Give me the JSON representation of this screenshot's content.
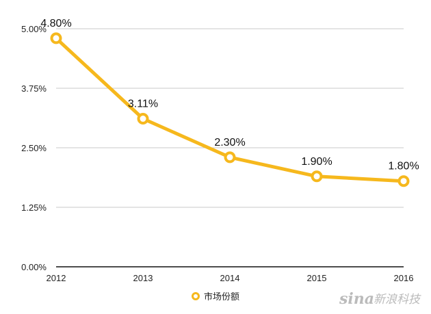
{
  "chart_data": {
    "type": "line",
    "title": "",
    "xlabel": "",
    "ylabel": "",
    "categories": [
      "2012",
      "2013",
      "2014",
      "2015",
      "2016"
    ],
    "series": [
      {
        "name": "市场份额",
        "values": [
          4.8,
          3.11,
          2.3,
          1.9,
          1.8
        ],
        "labels": [
          "4.80%",
          "3.11%",
          "2.30%",
          "1.90%",
          "1.80%"
        ],
        "color": "#F6B81D"
      }
    ],
    "ylim": [
      0,
      5
    ],
    "yticks": [
      0,
      1.25,
      2.5,
      3.75,
      5
    ],
    "ytick_labels": [
      "0.00%",
      "1.25%",
      "2.50%",
      "3.75%",
      "5.00%"
    ],
    "grid": true,
    "legend": "bottom-center"
  },
  "colors": {
    "series": "#F6B81D",
    "grid": "#c8c8c8",
    "axis": "#111111",
    "watermark": "#bbbbbb"
  },
  "watermark": {
    "brand": "sina",
    "text": "新浪科技"
  }
}
